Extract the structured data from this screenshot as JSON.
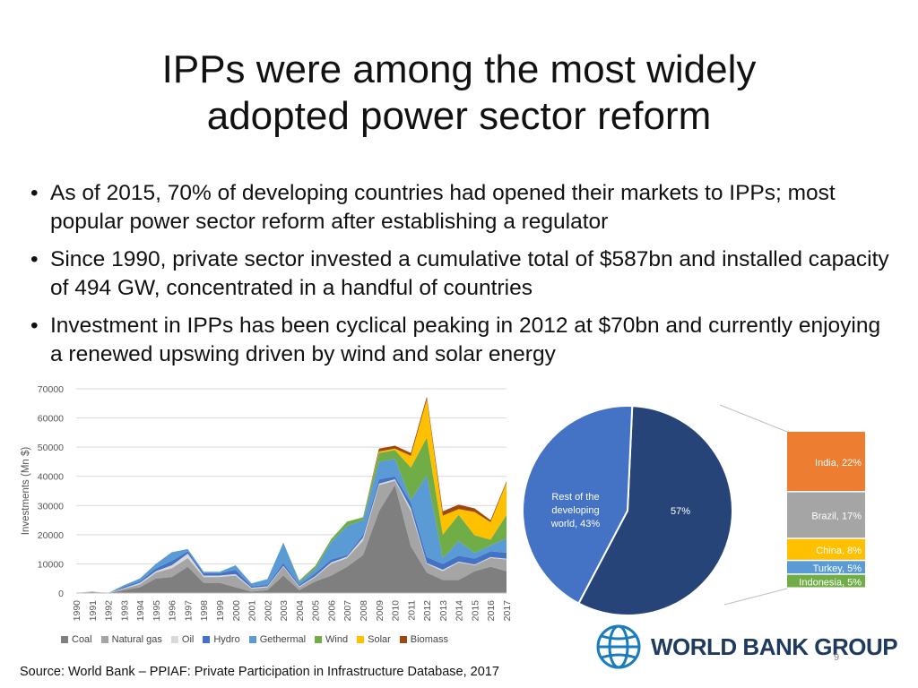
{
  "title_lines": [
    "IPPs were among the most widely",
    "adopted power sector reform"
  ],
  "bullets": [
    "As of 2015, 70% of developing countries had opened their markets to IPPs; most popular power sector reform after establishing a regulator",
    "Since 1990, private sector invested a cumulative total of $587bn and installed capacity of 494 GW, concentrated in a handful of countries",
    "Investment in IPPs has been cyclical peaking in 2012 at $70bn and currently enjoying a renewed upswing driven by wind and solar energy"
  ],
  "source": "Source: World Bank – PPIAF: Private Participation in Infrastructure Database, 2017",
  "logo_text": "WORLD BANK GROUP",
  "slide_number": "9",
  "chart_data": [
    {
      "type": "area",
      "stacked": true,
      "ylabel": "Investments (Mn $)",
      "ylim": [
        0,
        70000
      ],
      "yticks": [
        "0",
        "10000",
        "20000",
        "30000",
        "40000",
        "50000",
        "60000",
        "70000"
      ],
      "x": [
        "1990",
        "1991",
        "1992",
        "1993",
        "1994",
        "1995",
        "1996",
        "1997",
        "1998",
        "1999",
        "2000",
        "2001",
        "2002",
        "2003",
        "2004",
        "2005",
        "2006",
        "2007",
        "2008",
        "2009",
        "2010",
        "2011",
        "2012",
        "2013",
        "2014",
        "2015",
        "2016",
        "2017"
      ],
      "legend_position": "bottom",
      "grid": true,
      "series": [
        {
          "name": "Coal",
          "color": "#7f7f7f",
          "values": [
            0,
            300,
            0,
            1000,
            2000,
            5000,
            5500,
            9000,
            3500,
            3500,
            2000,
            500,
            1000,
            6000,
            1000,
            4000,
            6000,
            9000,
            13000,
            28000,
            37000,
            16000,
            7000,
            4500,
            4500,
            7500,
            9000,
            7500
          ]
        },
        {
          "name": "Natural gas",
          "color": "#a5a5a5",
          "values": [
            0,
            200,
            0,
            500,
            1000,
            2000,
            3000,
            3000,
            2000,
            2000,
            4000,
            1000,
            1000,
            3000,
            1000,
            1500,
            4000,
            3000,
            5000,
            9000,
            1500,
            12000,
            3000,
            3000,
            6000,
            2000,
            3000,
            4000
          ]
        },
        {
          "name": "Oil",
          "color": "#d9d9d9",
          "values": [
            0,
            100,
            0,
            200,
            500,
            500,
            1000,
            1500,
            500,
            500,
            500,
            300,
            300,
            300,
            300,
            300,
            500,
            500,
            1000,
            500,
            500,
            1000,
            300,
            500,
            300,
            300,
            300,
            300
          ]
        },
        {
          "name": "Hydro",
          "color": "#4472c4",
          "values": [
            0,
            0,
            0,
            500,
            500,
            1000,
            1500,
            800,
            800,
            800,
            1500,
            500,
            500,
            1000,
            500,
            1000,
            1000,
            500,
            1000,
            1500,
            1000,
            2000,
            2000,
            2000,
            2000,
            2000,
            2000,
            2000
          ]
        },
        {
          "name": "Gethermal",
          "color": "#5b9bd5",
          "values": [
            0,
            0,
            0,
            500,
            1000,
            1500,
            3000,
            800,
            500,
            500,
            1500,
            1000,
            2000,
            7000,
            1000,
            1500,
            6000,
            10000,
            5000,
            6000,
            6000,
            1000,
            28000,
            2000,
            5000,
            2000,
            2000,
            5000
          ]
        },
        {
          "name": "Wind",
          "color": "#70ad47",
          "values": [
            0,
            0,
            0,
            0,
            0,
            0,
            0,
            0,
            0,
            0,
            0,
            0,
            0,
            0,
            500,
            1000,
            1000,
            1500,
            1000,
            3000,
            3000,
            11000,
            13000,
            8000,
            9000,
            6000,
            2000,
            8000
          ]
        },
        {
          "name": "Solar",
          "color": "#ffc000",
          "values": [
            0,
            0,
            0,
            0,
            0,
            0,
            0,
            0,
            0,
            0,
            0,
            0,
            0,
            0,
            0,
            0,
            0,
            0,
            0,
            500,
            500,
            4000,
            13000,
            6500,
            2000,
            8000,
            6000,
            11000
          ]
        },
        {
          "name": "Biomass",
          "color": "#9e480e",
          "values": [
            0,
            0,
            0,
            0,
            0,
            0,
            0,
            0,
            0,
            0,
            0,
            0,
            0,
            0,
            0,
            0,
            0,
            0,
            0,
            1000,
            1000,
            1000,
            1000,
            1500,
            1500,
            1200,
            700,
            500
          ]
        }
      ]
    },
    {
      "type": "pie",
      "slices": [
        {
          "label": "Rest of the developing world, 43%",
          "lines": [
            "Rest of the",
            "developing",
            "world, 43%"
          ],
          "value": 43,
          "color": "#4472c4"
        },
        {
          "label": "57%",
          "lines": [
            "57%"
          ],
          "value": 57,
          "color": "#264478"
        }
      ],
      "breakdown": [
        {
          "label": "India, 22%",
          "value": 22,
          "color": "#ed7d31"
        },
        {
          "label": "Brazil, 17%",
          "value": 17,
          "color": "#a5a5a5"
        },
        {
          "label": "China, 8%",
          "value": 8,
          "color": "#ffc000"
        },
        {
          "label": "Turkey, 5%",
          "value": 5,
          "color": "#5b9bd5"
        },
        {
          "label": "Indonesia, 5%",
          "value": 5,
          "color": "#70ad47"
        }
      ]
    }
  ]
}
